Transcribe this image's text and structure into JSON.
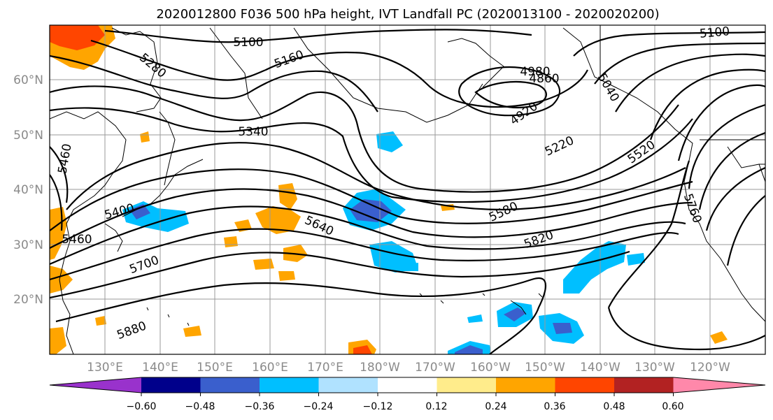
{
  "title": "2020012800 F036 500 hPa height, IVT Landfall PC (2020013100 - 2020020200)",
  "lat_labels": [
    "60°N",
    "50°N",
    "40°N",
    "30°N",
    "20°N"
  ],
  "lon_labels": [
    "130°E",
    "140°E",
    "150°E",
    "160°E",
    "170°E",
    "180°W",
    "170°W",
    "160°W",
    "150°W",
    "140°W",
    "130°W",
    "120°W"
  ],
  "colorbar": {
    "ticks": [
      "−0.60",
      "−0.48",
      "−0.36",
      "−0.24",
      "−0.12",
      "0.12",
      "0.24",
      "0.36",
      "0.48",
      "0.60"
    ],
    "colors": [
      "#9932cc",
      "#00008b",
      "#3a5fcd",
      "#00bfff",
      "#b0e2ff",
      "#ffffff",
      "#ffec8b",
      "#ffa500",
      "#ff4500",
      "#b22222",
      "#ff88aa"
    ]
  },
  "contour_labels": [
    "5100",
    "5160",
    "5280",
    "4980",
    "4860",
    "5040",
    "4920",
    "5340",
    "5220",
    "5520",
    "5460",
    "5400",
    "5460",
    "5640",
    "5580",
    "5820",
    "5700",
    "5760",
    "5880",
    "5100"
  ]
}
